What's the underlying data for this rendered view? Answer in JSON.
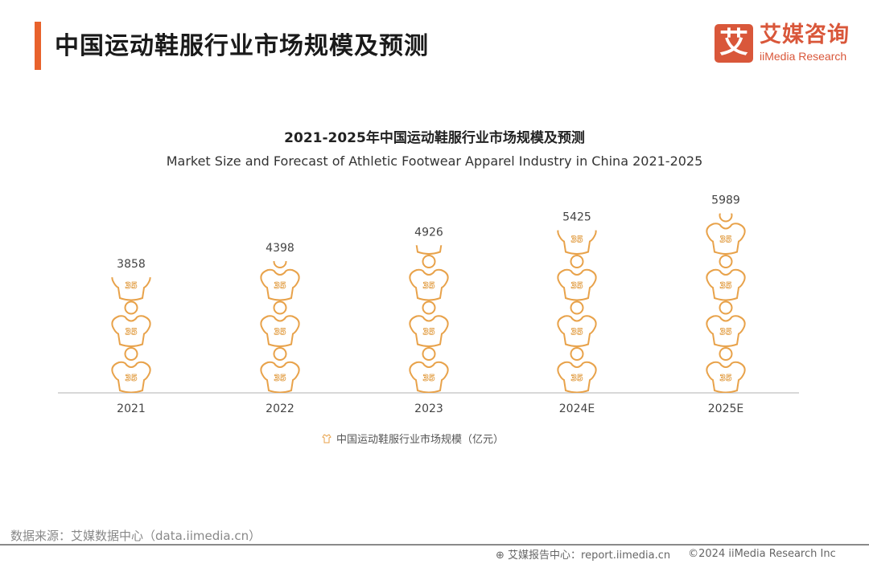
{
  "page_title": "中国运动鞋服行业市场规模及预测",
  "logo": {
    "mark": "艾",
    "cn": "艾媒咨询",
    "en": "iiMedia Research"
  },
  "source": "数据来源：艾媒数据中心（data.iimedia.cn）",
  "footer": {
    "report": "艾媒报告中心：report.iimedia.cn",
    "copyright": "©2024  iiMedia Research  Inc"
  },
  "colors": {
    "accent": "#e8622c",
    "logo": "#d9573a",
    "symbol": "#e8a24a"
  },
  "chart_data": {
    "type": "bar",
    "style": "pictograph (jersey symbol labeled 35)",
    "symbol_text": "35",
    "title": "2021-2025年中国运动鞋服行业市场规模及预测",
    "subtitle": "Market Size and Forecast of Athletic Footwear Apparel Industry in China 2021-2025",
    "categories": [
      "2021",
      "2022",
      "2023",
      "2024E",
      "2025E"
    ],
    "series": [
      {
        "name": "中国运动鞋服行业市场规模（亿元）",
        "values": [
          3858,
          4398,
          4926,
          5425,
          5989
        ]
      }
    ],
    "ylim": [
      0,
      6500
    ],
    "grid": false,
    "legend": "bottom"
  }
}
